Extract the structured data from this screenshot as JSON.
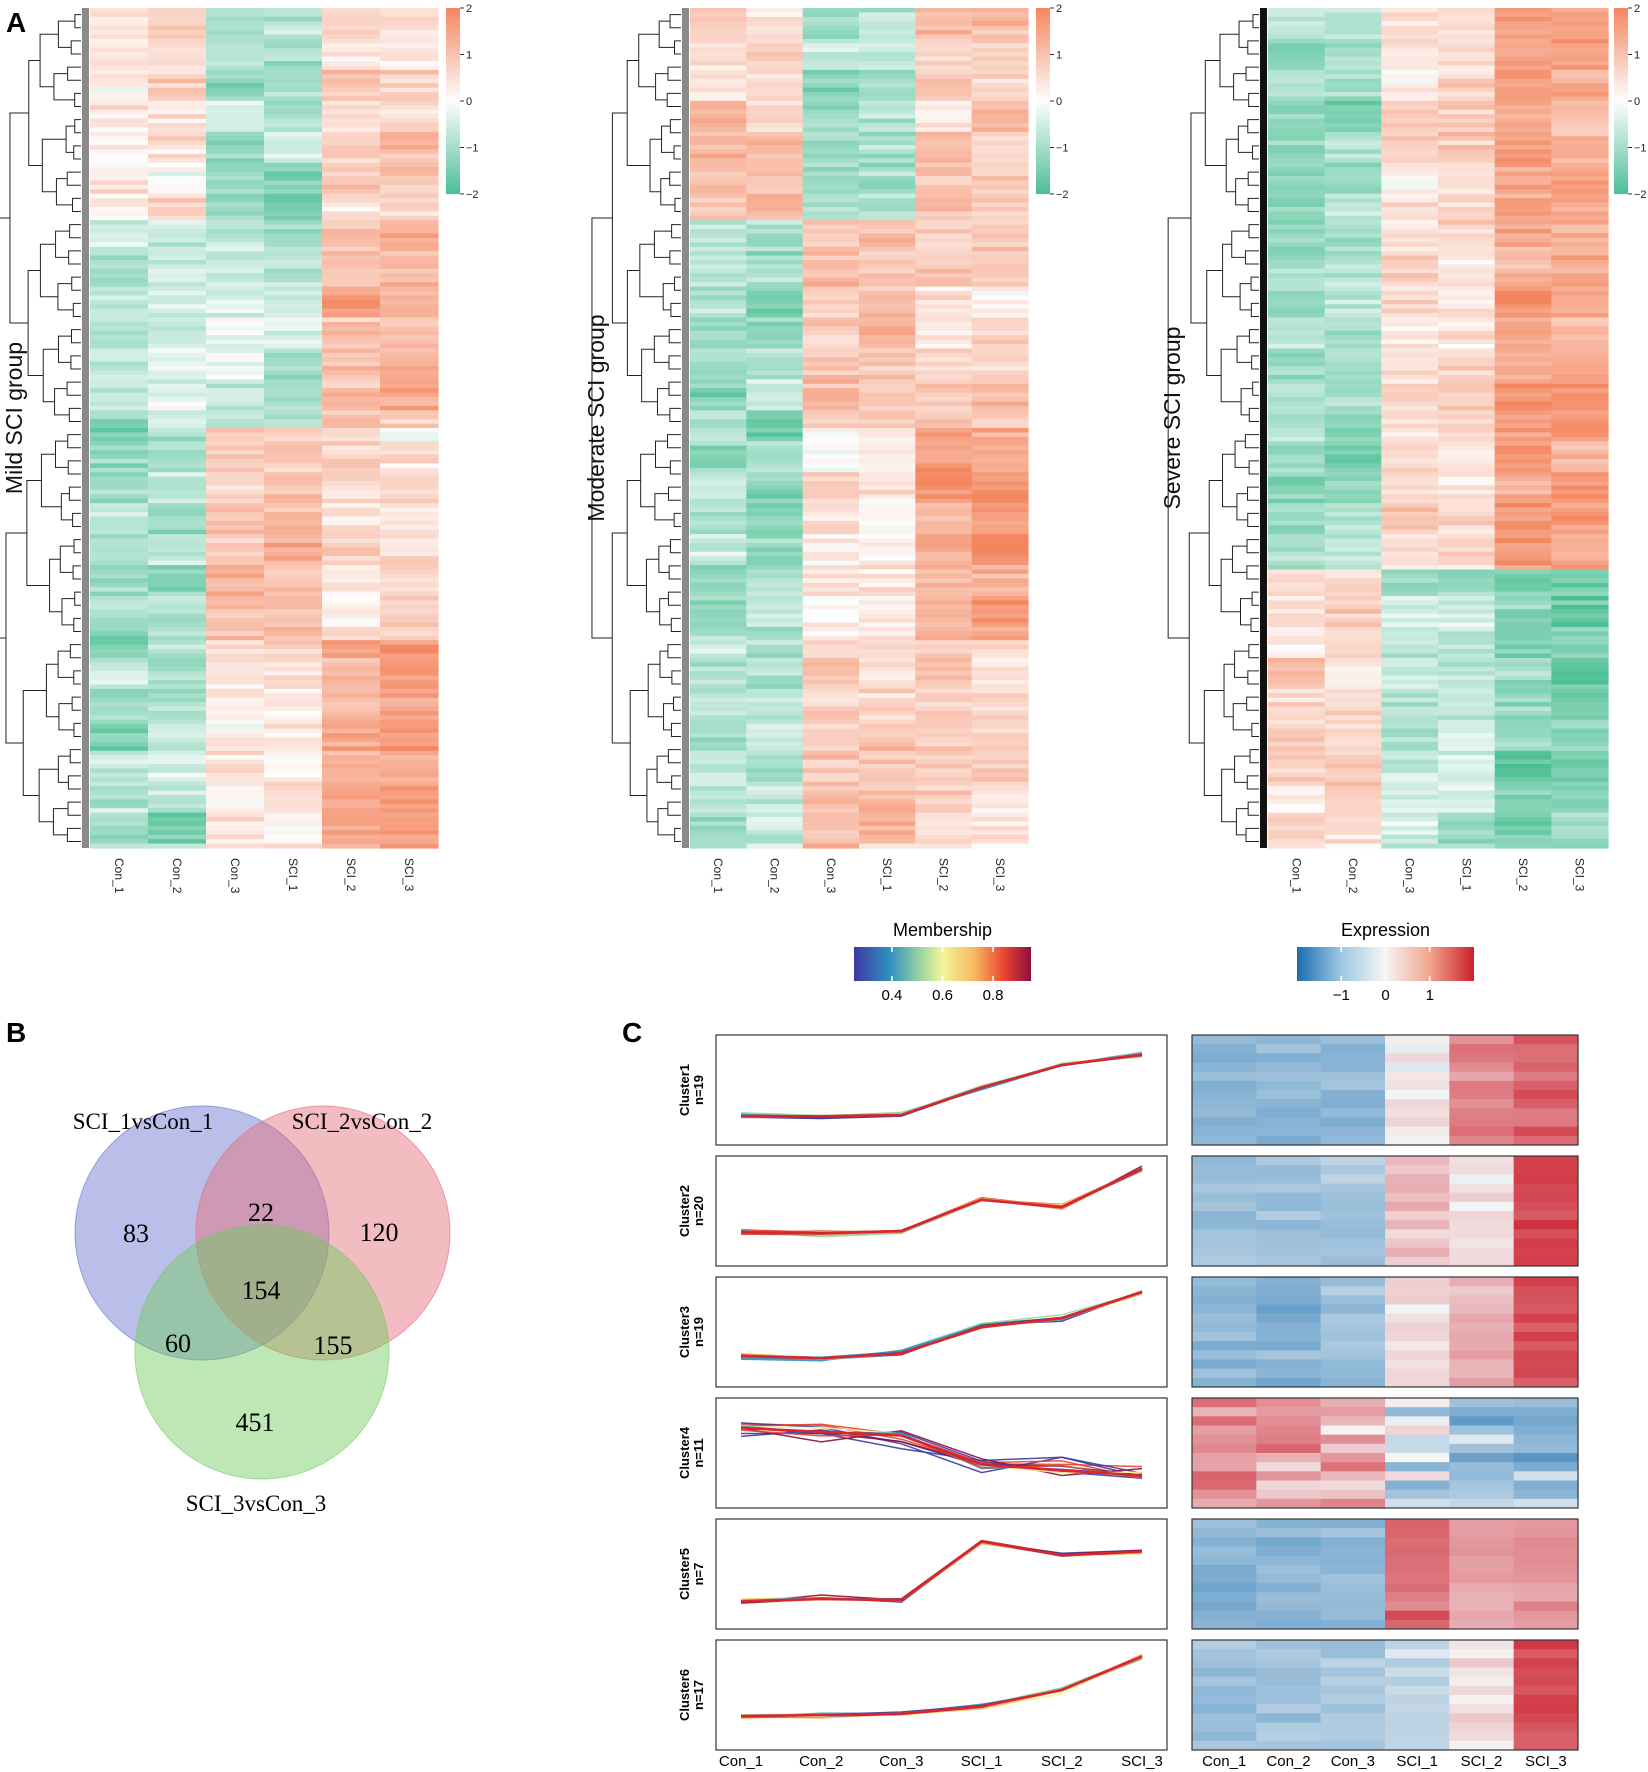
{
  "panels": {
    "A": "A",
    "B": "B",
    "C": "C"
  },
  "colors": {
    "heat_low": "#4bbf94",
    "heat_mid": "#fdfdfd",
    "heat_high": "#f4865f",
    "exp_low": "#2a7ab8",
    "exp_mid": "#f5f5f5",
    "exp_high": "#cc1f2c",
    "venn_a": "#6670d0",
    "venn_b": "#e56b74",
    "venn_c": "#6ec95e"
  },
  "chart_data": [
    {
      "id": "heatmap_mild",
      "type": "heatmap",
      "title": "Mild SCI group",
      "columns": [
        "Con_1",
        "Con_2",
        "Con_3",
        "SCI_1",
        "SCI_2",
        "SCI_3"
      ],
      "scale": [
        -2,
        2
      ],
      "scale_ticks": [
        "2",
        "1",
        "0",
        "−1",
        "−2"
      ],
      "profile": [
        [
          0.3,
          -1,
          0.7
        ],
        [
          -0.6,
          -0.6,
          1
        ],
        [
          -1,
          1,
          0.4
        ],
        [
          -1,
          0.5,
          1.4
        ]
      ]
    },
    {
      "id": "heatmap_moderate",
      "type": "heatmap",
      "title": "Moderate SCI group",
      "columns": [
        "Con_1",
        "Con_2",
        "Con_3",
        "SCI_1",
        "SCI_2",
        "SCI_3"
      ],
      "scale": [
        -2,
        2
      ],
      "scale_ticks": [
        "2",
        "1",
        "0",
        "−1",
        "−2"
      ],
      "profile": [
        [
          0.8,
          -1,
          0.8
        ],
        [
          -1,
          1,
          0.6
        ],
        [
          -1,
          0.4,
          1.4
        ],
        [
          -0.8,
          0.8,
          0.6
        ]
      ]
    },
    {
      "id": "heatmap_severe",
      "type": "heatmap",
      "title": "Severe SCI group",
      "columns": [
        "Con_1",
        "Con_2",
        "Con_3",
        "SCI_1",
        "SCI_2",
        "SCI_3"
      ],
      "scale": [
        -2,
        2
      ],
      "scale_ticks": [
        "2",
        "1",
        "0",
        "−1",
        "−2"
      ],
      "profile": [
        [
          -1,
          0.5,
          1.4
        ],
        [
          -1,
          0.6,
          1.5
        ],
        [
          0.6,
          -0.6,
          -1.4
        ]
      ]
    },
    {
      "id": "venn",
      "type": "venn",
      "sets": [
        "SCI_1vsCon_1",
        "SCI_2vsCon_2",
        "SCI_3vsCon_3"
      ],
      "regions": {
        "only_1": 83,
        "only_2": 120,
        "only_3": 451,
        "1_2": 22,
        "1_3": 60,
        "2_3": 155,
        "1_2_3": 154
      }
    },
    {
      "id": "membership_legend",
      "type": "colorbar",
      "title": "Membership",
      "ticks": [
        0.4,
        0.6,
        0.8
      ],
      "range": [
        0.25,
        0.95
      ]
    },
    {
      "id": "expression_legend",
      "type": "colorbar",
      "title": "Expression",
      "ticks": [
        -1,
        0,
        1
      ],
      "range": [
        -2,
        2
      ]
    },
    {
      "id": "clusters",
      "type": "line",
      "x": [
        "Con_1",
        "Con_2",
        "Con_3",
        "SCI_1",
        "SCI_2",
        "SCI_3"
      ],
      "clusters": [
        {
          "name": "Cluster1",
          "n": "n=19",
          "mean": [
            -1.05,
            -1.05,
            -1.0,
            0.1,
            1.0,
            1.4
          ]
        },
        {
          "name": "Cluster2",
          "n": "n=20",
          "mean": [
            -0.85,
            -0.9,
            -0.8,
            0.45,
            0.15,
            1.7
          ]
        },
        {
          "name": "Cluster3",
          "n": "n=19",
          "mean": [
            -0.95,
            -1.05,
            -0.85,
            0.2,
            0.55,
            1.6
          ]
        },
        {
          "name": "Cluster4",
          "n": "n=11",
          "mean": [
            1.0,
            0.85,
            0.7,
            -0.45,
            -0.7,
            -0.9
          ]
        },
        {
          "name": "Cluster5",
          "n": "n=7",
          "mean": [
            -1.1,
            -1.0,
            -1.05,
            1.3,
            0.75,
            0.9
          ]
        },
        {
          "name": "Cluster6",
          "n": "n=17",
          "mean": [
            -0.85,
            -0.8,
            -0.75,
            -0.45,
            0.2,
            1.55
          ]
        }
      ]
    }
  ]
}
